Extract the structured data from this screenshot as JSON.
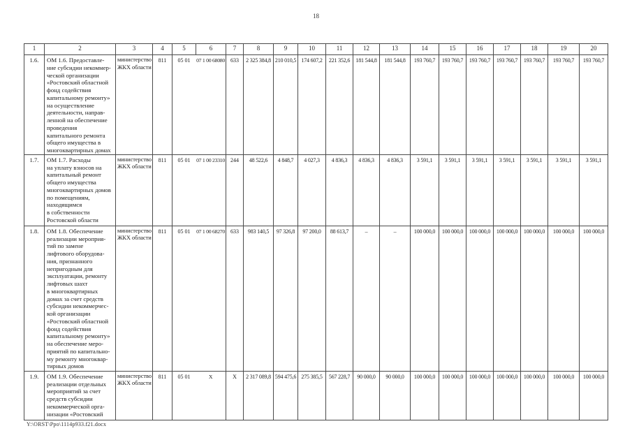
{
  "page": {
    "number": "18",
    "footer": "Y:\\ORST\\Ppo\\1114p933.f21.docx"
  },
  "table": {
    "column_numbers": [
      "1",
      "2",
      "3",
      "4",
      "5",
      "6",
      "7",
      "8",
      "9",
      "10",
      "11",
      "12",
      "13",
      "14",
      "15",
      "16",
      "17",
      "18",
      "19",
      "20"
    ],
    "rows": [
      {
        "num": "1.6.",
        "name_lines": [
          "ОМ 1.6. Предоставле-",
          "ние субсидии некоммер-",
          "ческой организации",
          "«Ростовский областной",
          "фонд содействия",
          "капитальному ремонту»",
          "на осуществление",
          "деятельности, направ-",
          "ленной на обеспечение",
          "проведения",
          "капитального ремонта",
          "общего имущества в",
          "многоквартирных домах"
        ],
        "executor": "министерство ЖКХ области",
        "col4": "811",
        "col5": "05 01",
        "col6": "07 1 00 68080",
        "col7": "633",
        "values": [
          "2 325 384,8",
          "210 010,5",
          "174 607,2",
          "221 352,6",
          "181 544,8",
          "181 544,8",
          "193 760,7",
          "193 760,7",
          "193 760,7",
          "193 760,7",
          "193 760,7",
          "193 760,7",
          "193 760,7"
        ]
      },
      {
        "num": "1.7.",
        "name_lines": [
          "ОМ 1.7. Расходы",
          "на уплату взносов на",
          "капитальный ремонт",
          "общего имущества",
          "многоквартирных домов",
          "по помещениям,",
          "находящимся",
          "в собственности",
          "Ростовской области"
        ],
        "executor": "министерство ЖКХ области",
        "col4": "811",
        "col5": "05 01",
        "col6": "07 1 00 23310",
        "col7": "244",
        "values": [
          "48 522,6",
          "4 848,7",
          "4 027,3",
          "4 836,3",
          "4 836,3",
          "4 836,3",
          "3 591,1",
          "3 591,1",
          "3 591,1",
          "3 591,1",
          "3 591,1",
          "3 591,1",
          "3 591,1"
        ]
      },
      {
        "num": "1.8.",
        "name_lines": [
          "ОМ 1.8. Обеспечение",
          "реализации мероприя-",
          "тий по замене",
          "лифтового оборудова-",
          "ния, признанного",
          "непригодным для",
          "эксплуатации, ремонту",
          "лифтовых шахт",
          "в многоквартирных",
          "домах за счет средств",
          "субсидии некоммерчес-",
          "кой организации",
          "«Ростовский областной",
          "фонд содействия",
          "капитальному ремонту»",
          "на обеспечение меро-",
          "приятий по капитально-",
          "му ремонту многоквар-",
          "тирных домов"
        ],
        "executor": "министерство ЖКХ области",
        "col4": "811",
        "col5": "05 01",
        "col6": "07 1 00 68270",
        "col7": "633",
        "values": [
          "983 140,5",
          "97 326,8",
          "97 200,0",
          "88 613,7",
          "–",
          "–",
          "100 000,0",
          "100 000,0",
          "100 000,0",
          "100 000,0",
          "100 000,0",
          "100 000,0",
          "100 000,0"
        ]
      },
      {
        "num": "1.9.",
        "name_lines": [
          "ОМ 1.9. Обеспечение",
          "реализации отдельных",
          "мероприятий за счет",
          "средств субсидии",
          "некоммерческой орга-",
          "низации «Ростовский"
        ],
        "executor": "министерство ЖКХ области",
        "col4": "811",
        "col5": "05 01",
        "col6": "X",
        "col7": "X",
        "values": [
          "2 317 089,8",
          "594 475,6",
          "275 385,5",
          "567 228,7",
          "90 000,0",
          "90 000,0",
          "100 000,0",
          "100 000,0",
          "100 000,0",
          "100 000,0",
          "100 000,0",
          "100 000,0",
          "100 000,0"
        ]
      }
    ]
  }
}
